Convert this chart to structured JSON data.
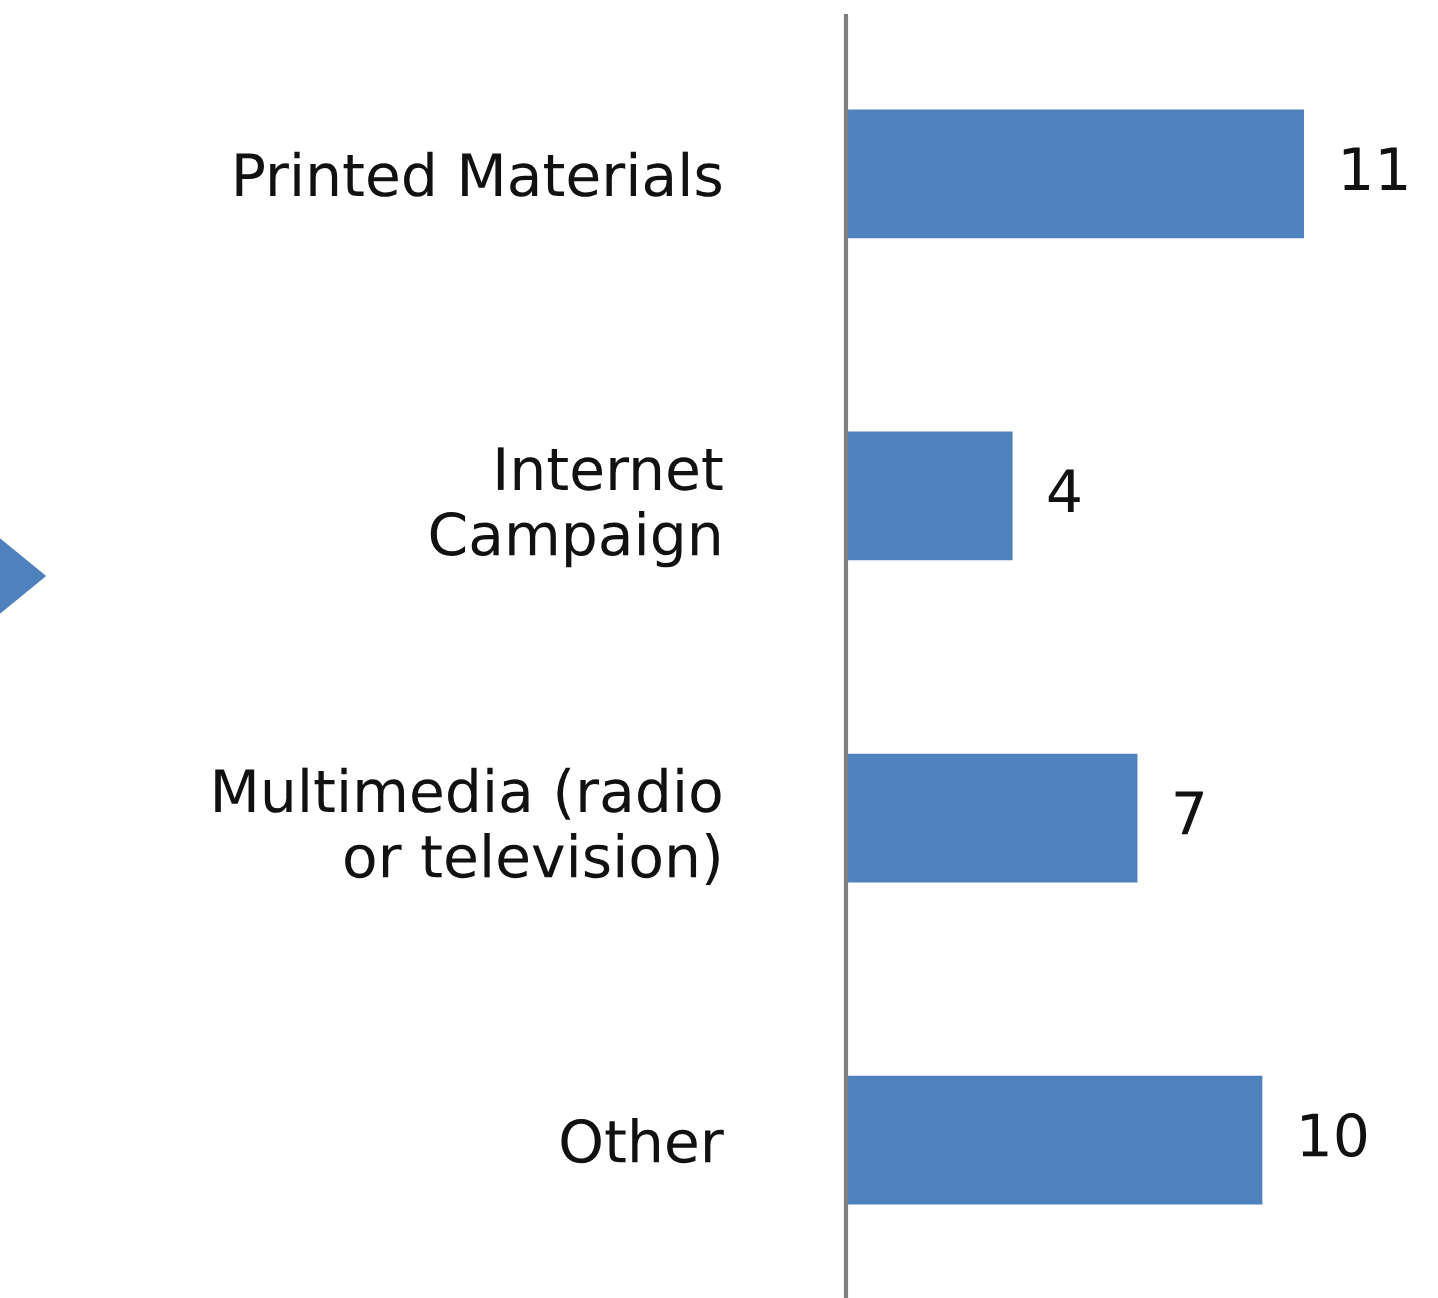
{
  "chart_data": {
    "type": "bar",
    "orientation": "horizontal",
    "categories": [
      "Printed Materials",
      "Internet\nCampaign",
      "Multimedia (radio\nor television)",
      "Other"
    ],
    "values": [
      11,
      4,
      7,
      10
    ],
    "color": "#4f81bd",
    "data_labels": true,
    "grid": false,
    "legend": false
  }
}
